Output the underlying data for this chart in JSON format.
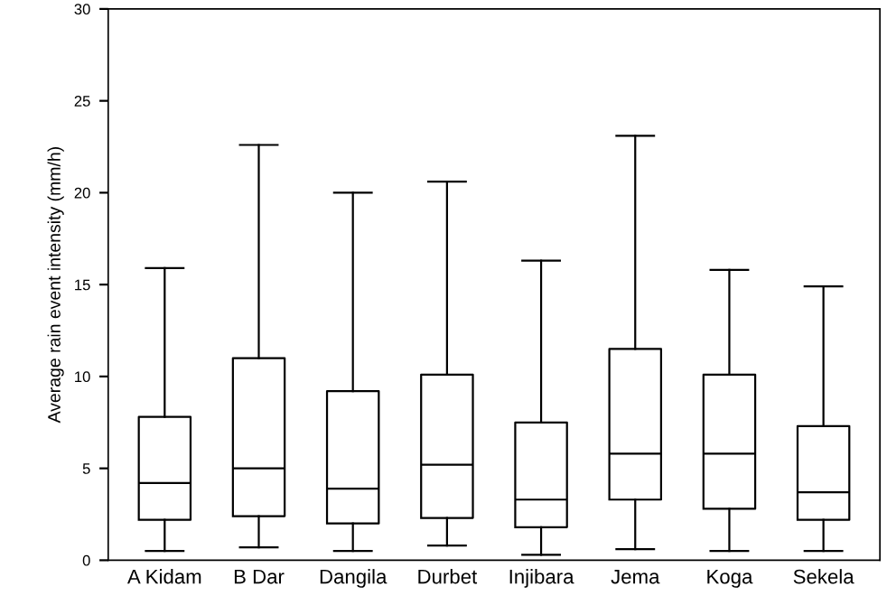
{
  "chart_data": {
    "type": "box",
    "ylabel": "Average rain event intensity (mm/h)",
    "categories": [
      "A Kidam",
      "B Dar",
      "Dangila",
      "Durbet",
      "Injibara",
      "Jema",
      "Koga",
      "Sekela"
    ],
    "boxes": [
      {
        "low": 0.5,
        "q1": 2.2,
        "median": 4.2,
        "q3": 7.8,
        "high": 15.9
      },
      {
        "low": 0.7,
        "q1": 2.4,
        "median": 5.0,
        "q3": 11.0,
        "high": 22.6
      },
      {
        "low": 0.5,
        "q1": 2.0,
        "median": 3.9,
        "q3": 9.2,
        "high": 20.0
      },
      {
        "low": 0.8,
        "q1": 2.3,
        "median": 5.2,
        "q3": 10.1,
        "high": 20.6
      },
      {
        "low": 0.3,
        "q1": 1.8,
        "median": 3.3,
        "q3": 7.5,
        "high": 16.3
      },
      {
        "low": 0.6,
        "q1": 3.3,
        "median": 5.8,
        "q3": 11.5,
        "high": 23.1
      },
      {
        "low": 0.5,
        "q1": 2.8,
        "median": 5.8,
        "q3": 10.1,
        "high": 15.8
      },
      {
        "low": 0.5,
        "q1": 2.2,
        "median": 3.7,
        "q3": 7.3,
        "high": 14.9
      }
    ],
    "ylim": [
      0,
      30
    ],
    "yticks": [
      0,
      5,
      10,
      15,
      20,
      25,
      30
    ],
    "grid": false
  }
}
